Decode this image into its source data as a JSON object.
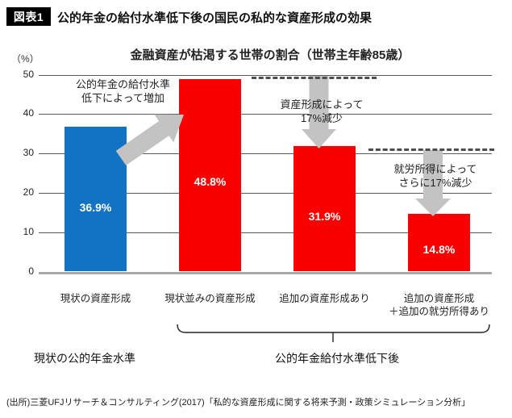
{
  "header": {
    "badge": "図表1",
    "title": "公的年金の給付水準低下後の国民の私的な資産形成の効果"
  },
  "chart_data": {
    "type": "bar",
    "title": "金融資産が枯渇する世帯の割合（世帯主年齢85歳）",
    "unit_label": "（%）",
    "categories": [
      "現状の資産形成",
      "現状並みの資産形成",
      "追加の資産形成あり",
      "追加の資産形成\n＋追加の就労所得あり"
    ],
    "values": [
      36.9,
      48.8,
      31.9,
      14.8
    ],
    "value_labels": [
      "36.9%",
      "48.8%",
      "31.9%",
      "14.8%"
    ],
    "bar_colors": [
      "#1273c4",
      "#fb0000",
      "#fb0000",
      "#fb0000"
    ],
    "y_ticks": [
      0,
      10,
      20,
      30,
      40,
      50
    ],
    "ylim": [
      0,
      50
    ],
    "grid": true,
    "legend": false,
    "annotations": {
      "increase": "公的年金の給付水準\n低下によって増加",
      "decrease_asset": "資産形成によって\n17%減少",
      "decrease_income": "就労所得によって\nさらに17%減少"
    },
    "group_labels": {
      "left": "現状の公的年金水準",
      "right": "公的年金給付水準低下後"
    }
  },
  "colors": {
    "bar_blue": "#1273c4",
    "bar_red": "#fb0000",
    "arrow_gray": "#c3c3c3",
    "dash_gray": "#4d4d4d",
    "badge_bg": "#000000"
  },
  "footer": {
    "source": "(出所)三菱UFJリサーチ＆コンサルティング(2017)「私的な資産形成に関する将来予測・政策シミュレーション分析」"
  }
}
